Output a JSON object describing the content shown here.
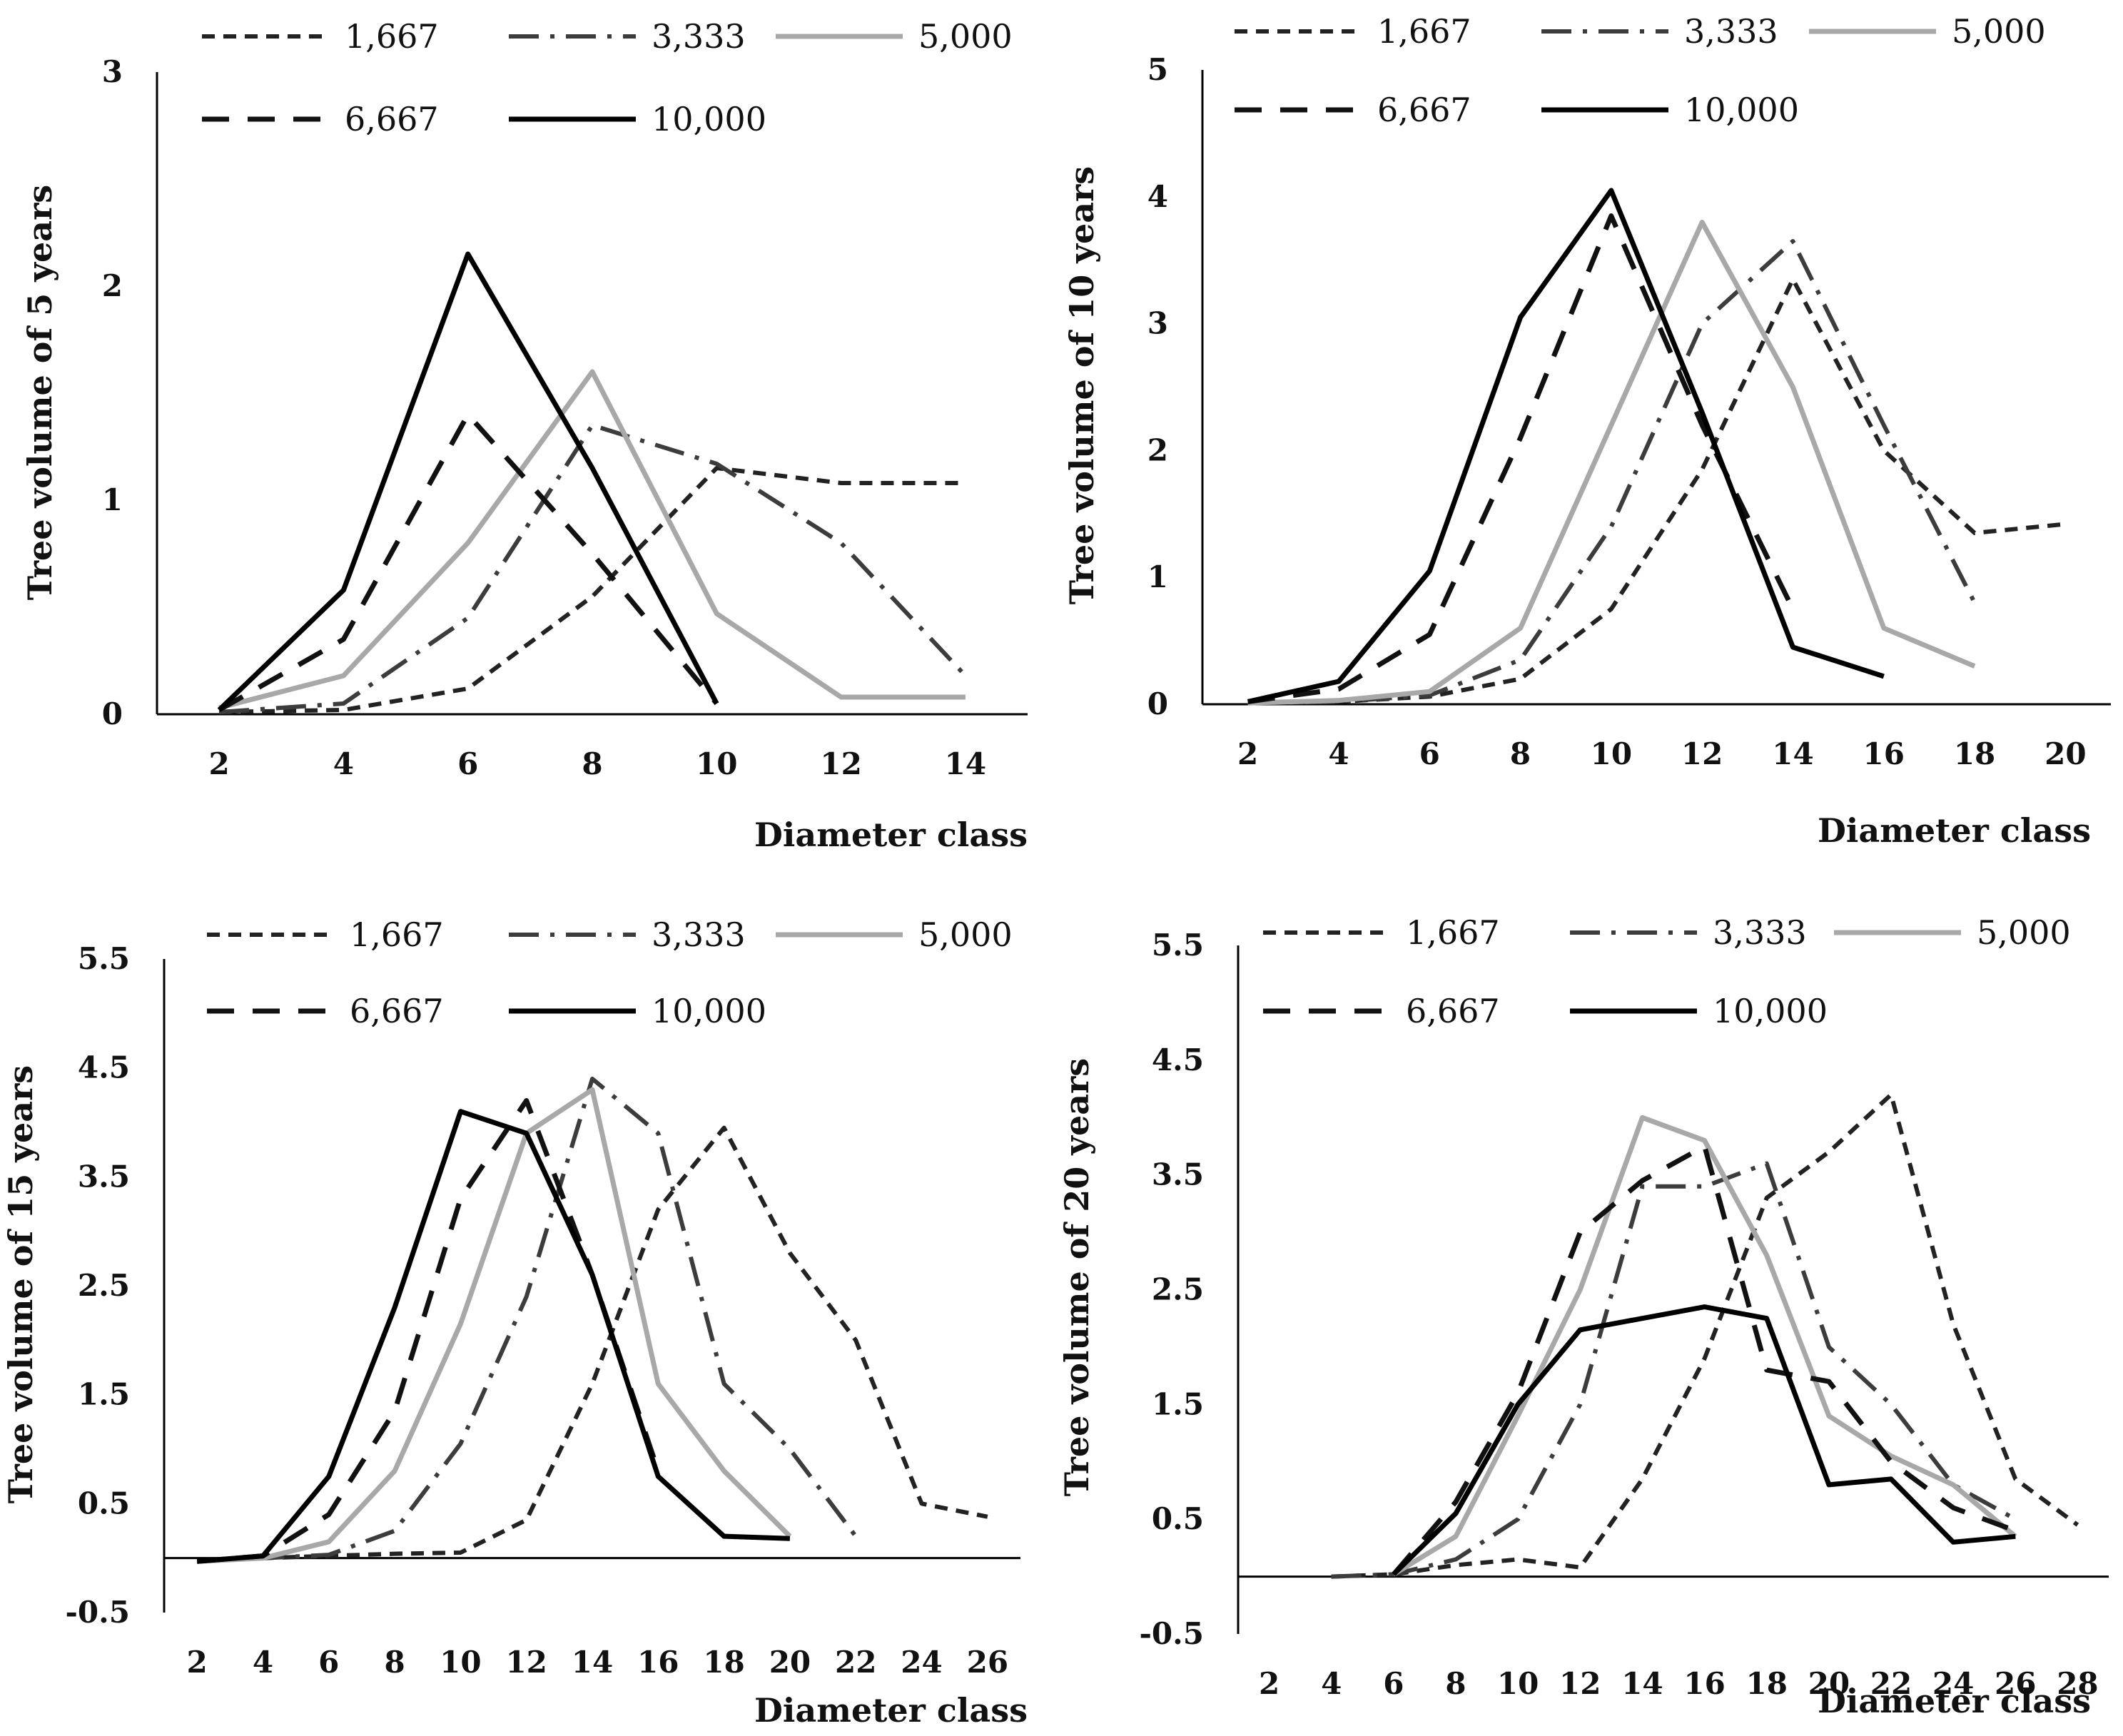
{
  "chart_data": [
    {
      "type": "line",
      "ylabel": "Tree volume of 5 years",
      "xlabel": "Diameter class",
      "ylim": [
        0,
        3
      ],
      "y_ticks": [
        0,
        1,
        2,
        3
      ],
      "y_tick_labels": [
        "0",
        "1",
        "2",
        "3"
      ],
      "x_ticks": [
        2,
        4,
        6,
        8,
        10,
        12,
        14
      ],
      "x_tick_labels": [
        "2",
        "4",
        "6",
        "8",
        "10",
        "12",
        "14"
      ],
      "grid": false,
      "legend_position": "top",
      "series": [
        {
          "name": "1,667",
          "x": [
            2,
            4,
            6,
            8,
            10,
            12,
            14
          ],
          "values": [
            0.01,
            0.02,
            0.12,
            0.55,
            1.15,
            1.08,
            1.08
          ]
        },
        {
          "name": "3,333",
          "x": [
            2,
            4,
            6,
            8,
            10,
            12,
            14
          ],
          "values": [
            0.01,
            0.05,
            0.45,
            1.35,
            1.17,
            0.8,
            0.18
          ]
        },
        {
          "name": "5,000",
          "x": [
            2,
            4,
            6,
            8,
            10,
            12,
            14
          ],
          "values": [
            0.03,
            0.18,
            0.8,
            1.6,
            0.47,
            0.08,
            0.08
          ]
        },
        {
          "name": "6,667",
          "x": [
            2,
            4,
            6,
            8,
            10
          ],
          "values": [
            0.02,
            0.35,
            1.4,
            0.75,
            0.05
          ]
        },
        {
          "name": "10,000",
          "x": [
            2,
            4,
            6,
            8,
            10
          ],
          "values": [
            0.02,
            0.58,
            2.15,
            1.15,
            0.05
          ]
        }
      ]
    },
    {
      "type": "line",
      "ylabel": "Tree volume of 10 years",
      "xlabel": "Diameter class",
      "ylim": [
        0,
        5
      ],
      "y_ticks": [
        0,
        1,
        2,
        3,
        4,
        5
      ],
      "y_tick_labels": [
        "0",
        "1",
        "2",
        "3",
        "4",
        "5"
      ],
      "x_ticks": [
        2,
        4,
        6,
        8,
        10,
        12,
        14,
        16,
        18,
        20
      ],
      "x_tick_labels": [
        "2",
        "4",
        "6",
        "8",
        "10",
        "12",
        "14",
        "16",
        "18",
        "20"
      ],
      "grid": false,
      "legend_position": "top",
      "series": [
        {
          "name": "1,667",
          "x": [
            2,
            4,
            6,
            8,
            10,
            12,
            14,
            16,
            18,
            20
          ],
          "values": [
            0.01,
            0.02,
            0.06,
            0.2,
            0.75,
            1.85,
            3.35,
            2.0,
            1.35,
            1.42
          ]
        },
        {
          "name": "3,333",
          "x": [
            2,
            4,
            6,
            8,
            10,
            12,
            14,
            16,
            18
          ],
          "values": [
            0.01,
            0.02,
            0.07,
            0.35,
            1.4,
            3.0,
            3.65,
            2.2,
            0.8
          ]
        },
        {
          "name": "5,000",
          "x": [
            2,
            4,
            6,
            8,
            10,
            12,
            14,
            16,
            18
          ],
          "values": [
            0.01,
            0.03,
            0.1,
            0.6,
            2.2,
            3.8,
            2.5,
            0.6,
            0.3
          ]
        },
        {
          "name": "6,667",
          "x": [
            2,
            4,
            6,
            8,
            10,
            12,
            14
          ],
          "values": [
            0.02,
            0.12,
            0.55,
            2.1,
            3.85,
            2.2,
            0.75
          ]
        },
        {
          "name": "10,000",
          "x": [
            2,
            4,
            6,
            8,
            10,
            12,
            14,
            16
          ],
          "values": [
            0.02,
            0.18,
            1.05,
            3.05,
            4.05,
            2.3,
            0.45,
            0.22
          ]
        }
      ]
    },
    {
      "type": "line",
      "ylabel": "Tree volume of 15 years",
      "xlabel": "Diameter class",
      "ylim": [
        -0.5,
        5.5
      ],
      "y_ticks": [
        -0.5,
        0.5,
        1.5,
        2.5,
        3.5,
        4.5,
        5.5
      ],
      "y_tick_labels": [
        "-0.5",
        "0.5",
        "1.5",
        "2.5",
        "3.5",
        "4.5",
        "5.5"
      ],
      "x_ticks": [
        2,
        4,
        6,
        8,
        10,
        12,
        14,
        16,
        18,
        20,
        22,
        24,
        26
      ],
      "x_tick_labels": [
        "2",
        "4",
        "6",
        "8",
        "10",
        "12",
        "14",
        "16",
        "18",
        "20",
        "22",
        "24",
        "26"
      ],
      "grid": false,
      "legend_position": "top",
      "series": [
        {
          "name": "1,667",
          "x": [
            2,
            4,
            6,
            8,
            10,
            12,
            14,
            16,
            18,
            20,
            22,
            24,
            26
          ],
          "values": [
            -0.03,
            0.0,
            0.02,
            0.04,
            0.05,
            0.35,
            1.6,
            3.2,
            3.95,
            2.8,
            2.0,
            0.5,
            0.38
          ]
        },
        {
          "name": "3,333",
          "x": [
            2,
            4,
            6,
            8,
            10,
            12,
            14,
            16,
            18,
            20,
            22
          ],
          "values": [
            -0.03,
            0.0,
            0.03,
            0.25,
            1.05,
            2.4,
            4.4,
            3.9,
            1.6,
            1.0,
            0.2
          ]
        },
        {
          "name": "5,000",
          "x": [
            2,
            4,
            6,
            8,
            10,
            12,
            14,
            16,
            18,
            20
          ],
          "values": [
            -0.03,
            0.0,
            0.15,
            0.8,
            2.15,
            3.9,
            4.3,
            1.6,
            0.8,
            0.2
          ]
        },
        {
          "name": "6,667",
          "x": [
            2,
            4,
            6,
            8,
            10,
            12,
            14,
            16
          ],
          "values": [
            -0.03,
            0.02,
            0.4,
            1.35,
            3.3,
            4.2,
            2.6,
            0.8
          ]
        },
        {
          "name": "10,000",
          "x": [
            2,
            4,
            6,
            8,
            10,
            12,
            14,
            16,
            18,
            20
          ],
          "values": [
            -0.03,
            0.02,
            0.75,
            2.3,
            4.1,
            3.9,
            2.6,
            0.75,
            0.2,
            0.18
          ]
        }
      ]
    },
    {
      "type": "line",
      "ylabel": "Tree volume of 20 years",
      "xlabel": "Diameter class",
      "ylim": [
        -0.5,
        5.5
      ],
      "y_ticks": [
        -0.5,
        0.5,
        1.5,
        2.5,
        3.5,
        4.5,
        5.5
      ],
      "y_tick_labels": [
        "-0.5",
        "0.5",
        "1.5",
        "2.5",
        "3.5",
        "4.5",
        "5.5"
      ],
      "x_ticks": [
        2,
        4,
        6,
        8,
        10,
        12,
        14,
        16,
        18,
        20,
        22,
        24,
        26,
        28
      ],
      "x_tick_labels": [
        "2",
        "4",
        "6",
        "8",
        "10",
        "12",
        "14",
        "16",
        "18",
        "20",
        "22",
        "24",
        "26",
        "28"
      ],
      "grid": false,
      "legend_position": "top",
      "series": [
        {
          "name": "1,667",
          "x": [
            4,
            6,
            8,
            10,
            12,
            14,
            16,
            18,
            20,
            22,
            24,
            26,
            28
          ],
          "values": [
            0.0,
            0.02,
            0.1,
            0.15,
            0.08,
            0.85,
            1.9,
            3.3,
            3.7,
            4.2,
            2.2,
            0.85,
            0.45
          ]
        },
        {
          "name": "3,333",
          "x": [
            4,
            6,
            8,
            10,
            12,
            14,
            16,
            18,
            20,
            22,
            24,
            26
          ],
          "values": [
            0.0,
            0.02,
            0.15,
            0.5,
            1.5,
            3.4,
            3.4,
            3.6,
            2.0,
            1.5,
            0.8,
            0.5
          ]
        },
        {
          "name": "5,000",
          "x": [
            6,
            8,
            10,
            12,
            14,
            16,
            18,
            20,
            22,
            24,
            26
          ],
          "values": [
            0.02,
            0.35,
            1.4,
            2.5,
            4.0,
            3.8,
            2.8,
            1.4,
            1.05,
            0.8,
            0.35
          ]
        },
        {
          "name": "6,667",
          "x": [
            6,
            8,
            10,
            12,
            14,
            16,
            18,
            20,
            22,
            24,
            26
          ],
          "values": [
            0.02,
            0.65,
            1.6,
            3.0,
            3.45,
            3.75,
            1.8,
            1.7,
            1.0,
            0.6,
            0.4
          ]
        },
        {
          "name": "10,000",
          "x": [
            6,
            8,
            10,
            12,
            14,
            16,
            18,
            20,
            22,
            24,
            26
          ],
          "values": [
            0.02,
            0.55,
            1.5,
            2.15,
            2.25,
            2.35,
            2.25,
            0.8,
            0.85,
            0.3,
            0.35
          ]
        }
      ]
    }
  ],
  "series_styles": [
    {
      "name": "1,667",
      "color": "#222222",
      "dash": "18 12",
      "width": 6
    },
    {
      "name": "3,333",
      "color": "#3c3c3c",
      "dash": "42 16 6 16",
      "width": 6
    },
    {
      "name": "5,000",
      "color": "#a8a8a8",
      "dash": "",
      "width": 7
    },
    {
      "name": "6,667",
      "color": "#111111",
      "dash": "38 26",
      "width": 7
    },
    {
      "name": "10,000",
      "color": "#000000",
      "dash": "",
      "width": 7
    }
  ]
}
